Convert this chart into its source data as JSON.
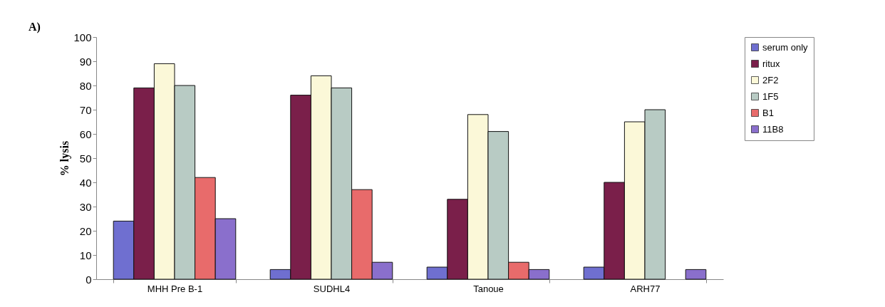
{
  "chart_data": {
    "type": "bar",
    "ylabel": "% lysis",
    "annotations": [
      "A)"
    ],
    "categories": [
      "MHH Pre B-1",
      "SUDHL4",
      "Tanoue",
      "ARH77"
    ],
    "series": [
      {
        "name": "serum only",
        "color": "#6f6fd0",
        "values": [
          24,
          4,
          5,
          5
        ]
      },
      {
        "name": "ritux",
        "color": "#7a1f4a",
        "values": [
          79,
          76,
          33,
          40
        ]
      },
      {
        "name": "2F2",
        "color": "#fbf8d8",
        "values": [
          89,
          84,
          68,
          65
        ]
      },
      {
        "name": "1F5",
        "color": "#b8cbc4",
        "values": [
          80,
          79,
          61,
          70
        ]
      },
      {
        "name": "B1",
        "color": "#e86b6b",
        "values": [
          42,
          37,
          7,
          null
        ]
      },
      {
        "name": "11B8",
        "color": "#8a6fcc",
        "values": [
          25,
          7,
          4,
          4
        ]
      }
    ],
    "ylim": [
      0,
      100
    ],
    "yticks": [
      0,
      10,
      20,
      30,
      40,
      50,
      60,
      70,
      80,
      90,
      100
    ],
    "grid": false,
    "legend": "right"
  }
}
